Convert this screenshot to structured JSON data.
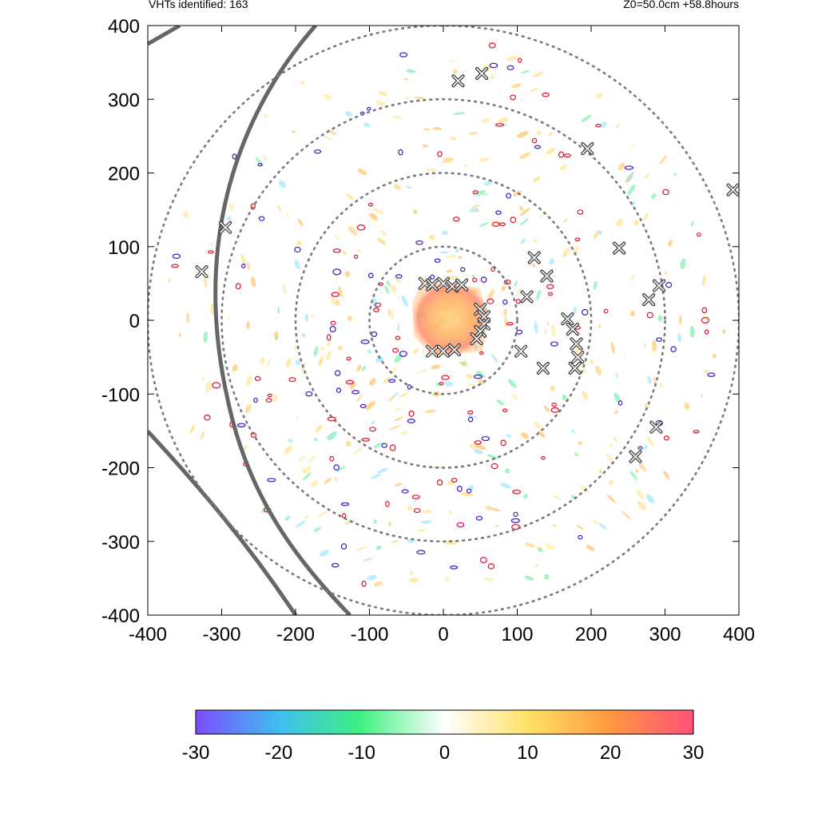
{
  "header": {
    "left_text": "VHTs identified: 163",
    "right_text": "Z0=50.0cm  +58.8hours"
  },
  "chart_data": {
    "type": "scatter",
    "title": "",
    "xlabel": "",
    "ylabel": "",
    "xlim": [
      -400,
      400
    ],
    "ylim": [
      -400,
      400
    ],
    "x_ticks": [
      "-400",
      "-300",
      "-200",
      "-100",
      "0",
      "100",
      "200",
      "300",
      "400"
    ],
    "y_ticks": [
      "400",
      "300",
      "200",
      "100",
      "0",
      "-100",
      "-200",
      "-300",
      "-400"
    ],
    "range_rings": [
      100,
      200,
      300,
      400
    ],
    "colorbar": {
      "min": -30,
      "max": 30,
      "ticks": [
        "-30",
        "-20",
        "-10",
        "0",
        "10",
        "20",
        "30"
      ],
      "colors": [
        "#7b4dff",
        "#3fbff0",
        "#3ef080",
        "#ffffff",
        "#ffe066",
        "#ff9a40",
        "#ff4f7a"
      ]
    },
    "vht_markers": [
      [
        -25,
        50
      ],
      [
        -15,
        48
      ],
      [
        0,
        50
      ],
      [
        12,
        46
      ],
      [
        25,
        48
      ],
      [
        50,
        15
      ],
      [
        55,
        5
      ],
      [
        55,
        -5
      ],
      [
        50,
        -15
      ],
      [
        45,
        -25
      ],
      [
        -15,
        -42
      ],
      [
        0,
        -42
      ],
      [
        15,
        -40
      ],
      [
        20,
        325
      ],
      [
        52,
        335
      ],
      [
        195,
        233
      ],
      [
        238,
        98
      ],
      [
        123,
        85
      ],
      [
        140,
        60
      ],
      [
        113,
        32
      ],
      [
        105,
        -42
      ],
      [
        135,
        -65
      ],
      [
        168,
        2
      ],
      [
        175,
        -12
      ],
      [
        180,
        -32
      ],
      [
        182,
        -50
      ],
      [
        178,
        -65
      ],
      [
        278,
        28
      ],
      [
        292,
        47
      ],
      [
        288,
        -145
      ],
      [
        260,
        -185
      ],
      [
        392,
        177
      ],
      [
        -295,
        126
      ],
      [
        -327,
        66
      ]
    ],
    "colors": {
      "contour_positive": "#e0102a",
      "contour_negative": "#3a18c8",
      "track": "#666666",
      "ring": "#777777"
    }
  }
}
